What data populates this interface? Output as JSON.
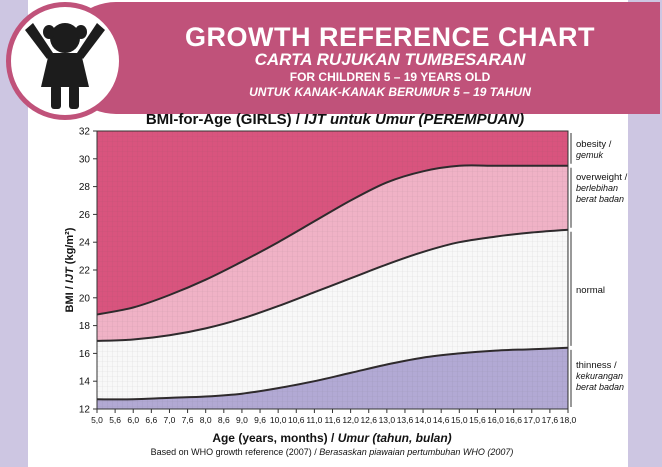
{
  "header": {
    "title_en": "GROWTH REFERENCE CHART",
    "title_ms": "CARTA RUJUKAN TUMBESARAN",
    "subtitle_en": "FOR CHILDREN 5 – 19 YEARS OLD",
    "subtitle_ms": "UNTUK KANAK-KANAK BERUMUR 5 – 19 TAHUN",
    "icon": "girl-icon"
  },
  "colors": {
    "banner": "#c0527a",
    "obesity": "#d9547e",
    "overweight": "#f0b2c6",
    "normal": "#f8f8f8",
    "thinness": "#b2a9d4",
    "curve": "#2e2a2c",
    "page_bg": "#cdc6e2"
  },
  "chart_data": {
    "type": "area",
    "title_en": "BMI-for-Age (GIRLS) / ",
    "title_ms": "IJT untuk Umur (PEREMPUAN)",
    "xlabel_en": "Age (years, months) / ",
    "xlabel_ms": "Umur (tahun, bulan)",
    "ylabel_en": "BMI / ",
    "ylabel_ms": "IJT",
    "ylabel_unit": " (kg/m²)",
    "source_en": "Based on WHO growth reference (2007) / ",
    "source_ms": "Berasaskan piawaian pertumbuhan WHO (2007)",
    "xlim": [
      5,
      18
    ],
    "ylim": [
      12,
      32
    ],
    "x_ticks": [
      "5,0",
      "5,6",
      "6,0",
      "6,6",
      "7,0",
      "7,6",
      "8,0",
      "8,6",
      "9,0",
      "9,6",
      "10,0",
      "10,6",
      "11,0",
      "11,6",
      "12,0",
      "12,6",
      "13,0",
      "13,6",
      "14,0",
      "14,6",
      "15,0",
      "15,6",
      "16,0",
      "16,6",
      "17,0",
      "17,6",
      "18,0"
    ],
    "y_ticks": [
      12,
      14,
      16,
      18,
      20,
      22,
      24,
      26,
      28,
      30,
      32
    ],
    "x": [
      5,
      6,
      7,
      8,
      9,
      10,
      11,
      12,
      13,
      14,
      15,
      16,
      17,
      18
    ],
    "series": [
      {
        "name": "lower",
        "values": [
          12.7,
          12.7,
          12.8,
          12.9,
          13.1,
          13.5,
          14.0,
          14.6,
          15.2,
          15.7,
          16.0,
          16.2,
          16.3,
          16.4
        ]
      },
      {
        "name": "middle",
        "values": [
          16.9,
          17.0,
          17.3,
          17.8,
          18.5,
          19.4,
          20.4,
          21.4,
          22.4,
          23.3,
          24.0,
          24.4,
          24.7,
          24.9
        ]
      },
      {
        "name": "upper",
        "values": [
          18.8,
          19.3,
          20.2,
          21.3,
          22.6,
          24.0,
          25.5,
          27.0,
          28.3,
          29.1,
          29.5,
          29.5,
          29.5,
          29.5
        ]
      }
    ],
    "zones": [
      {
        "name": "obesity",
        "lines": [
          "obesity /",
          "gemuk"
        ]
      },
      {
        "name": "overweight",
        "lines": [
          "overweight /",
          "berlebihan",
          "berat badan"
        ]
      },
      {
        "name": "normal",
        "lines": [
          "normal"
        ]
      },
      {
        "name": "thinness",
        "lines": [
          "thinness /",
          "kekurangan",
          "berat badan"
        ]
      }
    ]
  }
}
